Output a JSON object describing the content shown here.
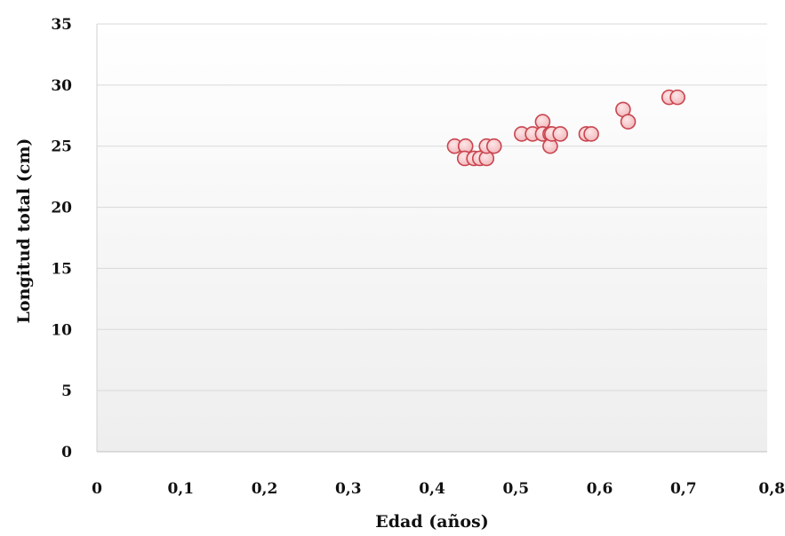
{
  "chart_data": {
    "type": "scatter",
    "title": "",
    "xlabel": "Edad (años)",
    "ylabel": "Longitud total (cm)",
    "xlim": [
      0,
      0.8
    ],
    "ylim": [
      0,
      35
    ],
    "x_ticks": [
      "0",
      "0,1",
      "0,2",
      "0,3",
      "0,4",
      "0,5",
      "0,6",
      "0,7",
      "0,8"
    ],
    "y_ticks": [
      "0",
      "5",
      "10",
      "15",
      "20",
      "25",
      "30",
      "35"
    ],
    "grid": "horizontal",
    "legend": "none",
    "marker_fill": "#f4c3c5",
    "marker_edge": "#c9444f",
    "series": [
      {
        "points": [
          {
            "x": 0.427,
            "y": 25
          },
          {
            "x": 0.44,
            "y": 25
          },
          {
            "x": 0.439,
            "y": 24
          },
          {
            "x": 0.45,
            "y": 24
          },
          {
            "x": 0.457,
            "y": 24
          },
          {
            "x": 0.465,
            "y": 24
          },
          {
            "x": 0.465,
            "y": 25
          },
          {
            "x": 0.474,
            "y": 25
          },
          {
            "x": 0.507,
            "y": 26
          },
          {
            "x": 0.52,
            "y": 26
          },
          {
            "x": 0.532,
            "y": 27
          },
          {
            "x": 0.532,
            "y": 26
          },
          {
            "x": 0.541,
            "y": 26
          },
          {
            "x": 0.541,
            "y": 25
          },
          {
            "x": 0.543,
            "y": 26
          },
          {
            "x": 0.553,
            "y": 26
          },
          {
            "x": 0.584,
            "y": 26
          },
          {
            "x": 0.59,
            "y": 26
          },
          {
            "x": 0.628,
            "y": 28
          },
          {
            "x": 0.634,
            "y": 27
          },
          {
            "x": 0.683,
            "y": 29
          },
          {
            "x": 0.693,
            "y": 29
          }
        ]
      }
    ]
  }
}
